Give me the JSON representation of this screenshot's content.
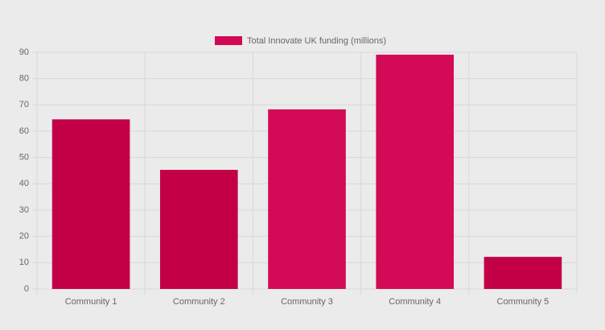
{
  "chart_data": {
    "type": "bar",
    "categories": [
      "Community 1",
      "Community 2",
      "Community 3",
      "Community 4",
      "Community 5"
    ],
    "series": [
      {
        "name": "Total Innovate UK funding (millions)",
        "color": "#d20a55",
        "colors": [
          "#c30046",
          "#c30046",
          "#d30a55",
          "#d30a55",
          "#c30046"
        ],
        "values": [
          64.5,
          45.3,
          68.3,
          89.1,
          12.2
        ]
      }
    ],
    "ylim": [
      0,
      90
    ],
    "yticks": [
      0,
      10,
      20,
      30,
      40,
      50,
      60,
      70,
      80,
      90
    ],
    "grid": true,
    "legend": "top"
  }
}
